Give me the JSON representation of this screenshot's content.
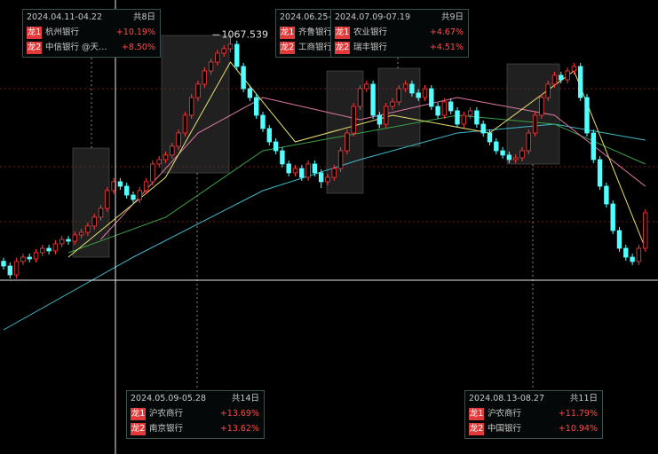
{
  "chart_data": {
    "type": "candlestick",
    "ylim": [
      713,
      1097
    ],
    "up_color": "#ff3c3c",
    "down_color": "#54ffff",
    "candles": [
      [
        876,
        879,
        869,
        872
      ],
      [
        872,
        875,
        861.5,
        864.5
      ],
      [
        864.5,
        878.8,
        861.5,
        875.8
      ],
      [
        875.8,
        882.5,
        872.8,
        879.5
      ],
      [
        879.5,
        882.5,
        875,
        878
      ],
      [
        878,
        886.3,
        875,
        883.3
      ],
      [
        883.3,
        890,
        880.3,
        887
      ],
      [
        887,
        890,
        881.8,
        884.8
      ],
      [
        884.8,
        893.8,
        881.8,
        890.8
      ],
      [
        890.8,
        897.5,
        887.8,
        894.5
      ],
      [
        894.5,
        897.5,
        890,
        893
      ],
      [
        893,
        901.3,
        890,
        898.3
      ],
      [
        898.3,
        903.5,
        895.3,
        900.5
      ],
      [
        900.5,
        908.8,
        897.5,
        905.8
      ],
      [
        905.8,
        916.3,
        902.8,
        913.3
      ],
      [
        913.3,
        923.8,
        910.3,
        920.8
      ],
      [
        920.8,
        938.8,
        917.8,
        935.8
      ],
      [
        935.8,
        946.3,
        932.8,
        943.3
      ],
      [
        943.3,
        946.3,
        936.5,
        939.5
      ],
      [
        939.5,
        942.5,
        929,
        932
      ],
      [
        932,
        935,
        925.3,
        928.3
      ],
      [
        928.3,
        938.8,
        925.3,
        935.8
      ],
      [
        935.8,
        946.3,
        932.8,
        943.3
      ],
      [
        943.3,
        961.3,
        940.3,
        958.3
      ],
      [
        958.3,
        965,
        955.3,
        962
      ],
      [
        962,
        968.8,
        959,
        965.8
      ],
      [
        965.8,
        976.3,
        962.8,
        973.3
      ],
      [
        973.3,
        987.5,
        970.3,
        984.5
      ],
      [
        984.5,
        1002.5,
        981.5,
        999.5
      ],
      [
        999.5,
        1017.5,
        996.5,
        1014.5
      ],
      [
        1014.5,
        1028.8,
        1011.5,
        1025.8
      ],
      [
        1025.8,
        1040,
        1022.8,
        1037
      ],
      [
        1037,
        1047.5,
        1034,
        1044.5
      ],
      [
        1044.5,
        1055,
        1041.5,
        1052
      ],
      [
        1052,
        1058.8,
        1049,
        1055.8
      ],
      [
        1055.8,
        1067.539,
        1052.8,
        1059.5
      ],
      [
        1059.5,
        1062.5,
        1037.8,
        1040.8
      ],
      [
        1040.8,
        1043.8,
        1019,
        1022
      ],
      [
        1022,
        1025,
        1011.5,
        1014.5
      ],
      [
        1014.5,
        1017.5,
        996.5,
        999.5
      ],
      [
        999.5,
        1002.5,
        985.3,
        988.3
      ],
      [
        988.3,
        991.3,
        974,
        977
      ],
      [
        977,
        980,
        966.5,
        969.5
      ],
      [
        969.5,
        972.5,
        955.3,
        958.3
      ],
      [
        958.3,
        961.3,
        947.8,
        950.8
      ],
      [
        950.8,
        957.5,
        947.8,
        954.5
      ],
      [
        954.5,
        957.5,
        944,
        947
      ],
      [
        947,
        961.3,
        944,
        958.3
      ],
      [
        958.3,
        961.3,
        947.8,
        950.8
      ],
      [
        950.8,
        953.8,
        938,
        943.3
      ],
      [
        943.3,
        950,
        940.3,
        947
      ],
      [
        947,
        957.5,
        944,
        954.5
      ],
      [
        954.5,
        972.5,
        951.5,
        969.5
      ],
      [
        969.5,
        987.5,
        966.5,
        984.5
      ],
      [
        984.5,
        1010,
        981.5,
        1007
      ],
      [
        1007,
        1025,
        1004,
        1022
      ],
      [
        1022,
        1028.8,
        1019,
        1025.8
      ],
      [
        1025.8,
        1028.8,
        996.5,
        999.5
      ],
      [
        999.5,
        1002.5,
        989,
        992
      ],
      [
        992,
        1010,
        989,
        1007
      ],
      [
        1007,
        1013.8,
        1004,
        1010.8
      ],
      [
        1010.8,
        1025,
        1007.8,
        1022
      ],
      [
        1022,
        1028.8,
        1019,
        1025.8
      ],
      [
        1025.8,
        1028.8,
        1015.3,
        1018.3
      ],
      [
        1018.3,
        1021.3,
        1011.5,
        1014.5
      ],
      [
        1014.5,
        1025,
        1011.5,
        1022
      ],
      [
        1022,
        1025,
        1004,
        1007
      ],
      [
        1007,
        1010,
        996.5,
        999.5
      ],
      [
        999.5,
        1013.8,
        996.5,
        1010.8
      ],
      [
        1010.8,
        1013.8,
        1000.3,
        1003.3
      ],
      [
        1003.3,
        1006.3,
        989,
        992
      ],
      [
        992,
        1002.5,
        989,
        999.5
      ],
      [
        999.5,
        1006.3,
        996.5,
        1003.3
      ],
      [
        1003.3,
        1006.3,
        989,
        992
      ],
      [
        992,
        995,
        981.5,
        984.5
      ],
      [
        984.5,
        987.5,
        974,
        977
      ],
      [
        977,
        980,
        966.5,
        969.5
      ],
      [
        969.5,
        972.5,
        962.8,
        965.8
      ],
      [
        965.8,
        968.8,
        959,
        962
      ],
      [
        962,
        966.5,
        959,
        963.5
      ],
      [
        963.5,
        972.5,
        960.5,
        969.5
      ],
      [
        969.5,
        987.5,
        966.5,
        984.5
      ],
      [
        984.5,
        1002.5,
        981.5,
        999.5
      ],
      [
        999.5,
        1017.5,
        996.5,
        1014.5
      ],
      [
        1014.5,
        1028.8,
        1011.5,
        1025.8
      ],
      [
        1025.8,
        1036.3,
        1022.8,
        1033.3
      ],
      [
        1033.3,
        1036.3,
        1026.5,
        1029.5
      ],
      [
        1029.5,
        1040,
        1026.5,
        1037
      ],
      [
        1037,
        1043.8,
        1034,
        1040.8
      ],
      [
        1040.8,
        1043.8,
        1011.5,
        1014.5
      ],
      [
        1014.5,
        1017.5,
        981.5,
        984.5
      ],
      [
        984.5,
        987.5,
        959,
        962
      ],
      [
        962,
        965,
        936.5,
        939.5
      ],
      [
        939.5,
        942.5,
        921.5,
        924.5
      ],
      [
        924.5,
        927.5,
        899,
        902
      ],
      [
        902,
        905,
        884,
        887
      ],
      [
        887,
        890,
        876.5,
        879.5
      ],
      [
        879.5,
        882.5,
        872.8,
        875.8
      ],
      [
        875.8,
        890,
        872.8,
        887
      ],
      [
        887,
        920,
        884,
        917
      ]
    ],
    "lines": [
      {
        "color": "#3fb8c8",
        "x": [
          0,
          20,
          40,
          55,
          70,
          85,
          99
        ],
        "values": [
          818,
          879.5,
          935.75,
          962,
          984.5,
          992,
          978.5
        ]
      },
      {
        "color": "#3aa048",
        "x": [
          10,
          25,
          40,
          55,
          70,
          85,
          99
        ],
        "values": [
          883.25,
          913.25,
          969.5,
          984.5,
          999.5,
          992,
          958.25
        ]
      },
      {
        "color": "#e07aa8",
        "x": [
          15,
          30,
          40,
          55,
          70,
          85,
          99
        ],
        "values": [
          894.5,
          984.5,
          1014.5,
          995.75,
          1014.5,
          999.5,
          939.5
        ]
      },
      {
        "color": "#e8e070",
        "x": [
          10,
          25,
          35,
          45,
          60,
          75,
          88,
          99
        ],
        "values": [
          879.5,
          947,
          1044.5,
          977,
          999.5,
          984.5,
          1037,
          887
        ]
      }
    ]
  },
  "annotations": [
    {
      "date": "2024.04.11-04.22",
      "days": "共8日",
      "items": [
        {
          "rank": "龙1",
          "name": "杭州银行",
          "change": "+10.19%"
        },
        {
          "rank": "龙2",
          "name": "中信银行 @天…",
          "change": "+8.50%"
        }
      ]
    },
    {
      "date": "2024.05.09-05.28",
      "days": "共14日",
      "items": [
        {
          "rank": "龙1",
          "name": "沪农商行",
          "change": "+13.69%"
        },
        {
          "rank": "龙2",
          "name": "南京银行",
          "change": "+13.62%"
        }
      ]
    },
    {
      "date": "2024.06.25-0",
      "items": [
        {
          "rank": "龙1",
          "name": "齐鲁银行"
        },
        {
          "rank": "龙2",
          "name": "工商银行"
        }
      ]
    },
    {
      "date": "2024.07.09-07.19",
      "days": "共9日",
      "items": [
        {
          "rank": "龙1",
          "name": "农业银行",
          "change": "+4.67%"
        },
        {
          "rank": "龙2",
          "name": "瑞丰银行",
          "change": "+4.51%"
        }
      ]
    },
    {
      "date": "2024.08.13-08.27",
      "days": "共11日",
      "items": [
        {
          "rank": "龙1",
          "name": "沪农商行",
          "change": "+11.79%"
        },
        {
          "rank": "龙2",
          "name": "中国银行",
          "change": "+10.94%"
        }
      ]
    }
  ]
}
